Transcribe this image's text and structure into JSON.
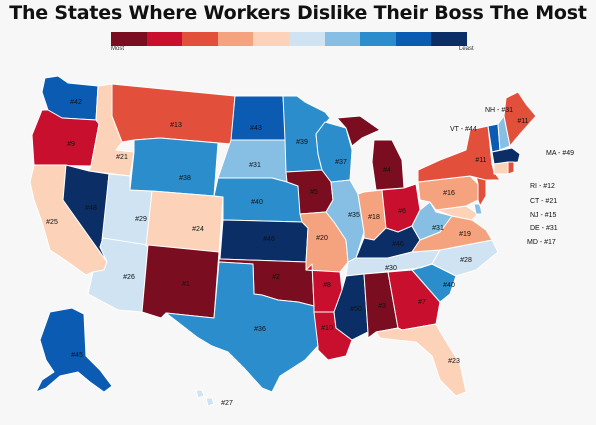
{
  "title": "The States Where Workers Dislike Their Boss The Most",
  "legend": {
    "most_label": "Most",
    "least_label": "Least",
    "colors": [
      "#7a0d1f",
      "#c8102e",
      "#e2503c",
      "#f5a27f",
      "#fcd3b8",
      "#cfe3f2",
      "#86bfe3",
      "#2b8dcb",
      "#0b5bb3",
      "#0b2e66"
    ]
  },
  "states": {
    "WA": {
      "rank": "#42"
    },
    "OR": {
      "rank": "#9"
    },
    "CA": {
      "rank": "#25"
    },
    "ID": {
      "rank": "#21"
    },
    "NV": {
      "rank": "#48"
    },
    "UT": {
      "rank": "#29"
    },
    "AZ": {
      "rank": "#26"
    },
    "MT": {
      "rank": "#13"
    },
    "WY": {
      "rank": "#38"
    },
    "CO": {
      "rank": "#24"
    },
    "NM": {
      "rank": "#1"
    },
    "ND": {
      "rank": "#43"
    },
    "SD": {
      "rank": "#31"
    },
    "NE": {
      "rank": "#40"
    },
    "KS": {
      "rank": "#46"
    },
    "OK": {
      "rank": "#2"
    },
    "TX": {
      "rank": "#36"
    },
    "MN": {
      "rank": "#39"
    },
    "IA": {
      "rank": "#5"
    },
    "MO": {
      "rank": "#20"
    },
    "AR": {
      "rank": "#8"
    },
    "LA": {
      "rank": "#10"
    },
    "WI": {
      "rank": "#37"
    },
    "IL": {
      "rank": "#35"
    },
    "MI": {
      "rank": "#4"
    },
    "IN": {
      "rank": "#18"
    },
    "OH": {
      "rank": "#6"
    },
    "KY": {
      "rank": "#46"
    },
    "TN": {
      "rank": "#30"
    },
    "MS": {
      "rank": "#50"
    },
    "AL": {
      "rank": "#3"
    },
    "GA": {
      "rank": "#7"
    },
    "FL": {
      "rank": "#23"
    },
    "SC": {
      "rank": "#40"
    },
    "NC": {
      "rank": "#28"
    },
    "VA": {
      "rank": "#19"
    },
    "WV": {
      "rank": "#31"
    },
    "PA": {
      "rank": "#16"
    },
    "NY": {
      "rank": "#11"
    },
    "ME": {
      "rank": "#11"
    },
    "AK": {
      "rank": "#45"
    },
    "HI": {
      "rank": "#27"
    }
  },
  "callouts": {
    "NH": "NH - #31",
    "VT": "VT - #44",
    "MA": "MA - #49",
    "RI": "RI - #12",
    "CT": "CT - #21",
    "NJ": "NJ - #15",
    "DE": "DE - #31",
    "MD": "MD - #17"
  }
}
